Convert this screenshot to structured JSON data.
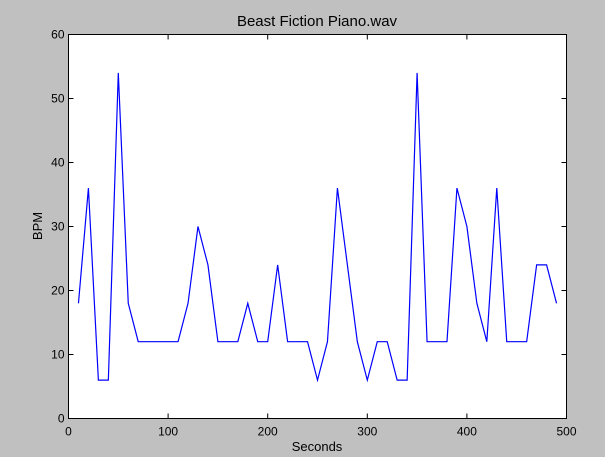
{
  "chart_data": {
    "type": "line",
    "title": "Beast Fiction Piano.wav",
    "xlabel": "Seconds",
    "ylabel": "BPM",
    "xlim": [
      0,
      500
    ],
    "ylim": [
      0,
      60
    ],
    "xticks": [
      0,
      100,
      200,
      300,
      400,
      500
    ],
    "yticks": [
      0,
      10,
      20,
      30,
      40,
      50,
      60
    ],
    "grid": false,
    "series": [
      {
        "color": "#0000ff",
        "x": [
          10,
          20,
          30,
          40,
          50,
          60,
          70,
          80,
          90,
          100,
          110,
          120,
          130,
          140,
          150,
          160,
          170,
          180,
          190,
          200,
          210,
          220,
          230,
          240,
          250,
          260,
          270,
          280,
          290,
          300,
          310,
          320,
          330,
          340,
          350,
          360,
          370,
          380,
          390,
          400,
          410,
          420,
          430,
          440,
          450,
          460,
          470,
          480,
          490
        ],
        "y": [
          18,
          36,
          6,
          6,
          54,
          18,
          12,
          12,
          12,
          12,
          12,
          18,
          30,
          24,
          12,
          12,
          12,
          18,
          12,
          12,
          24,
          12,
          12,
          12,
          6,
          12,
          36,
          24,
          12,
          6,
          12,
          12,
          6,
          6,
          54,
          12,
          12,
          12,
          36,
          30,
          18,
          12,
          36,
          12,
          12,
          12,
          24,
          24,
          18
        ]
      }
    ]
  }
}
